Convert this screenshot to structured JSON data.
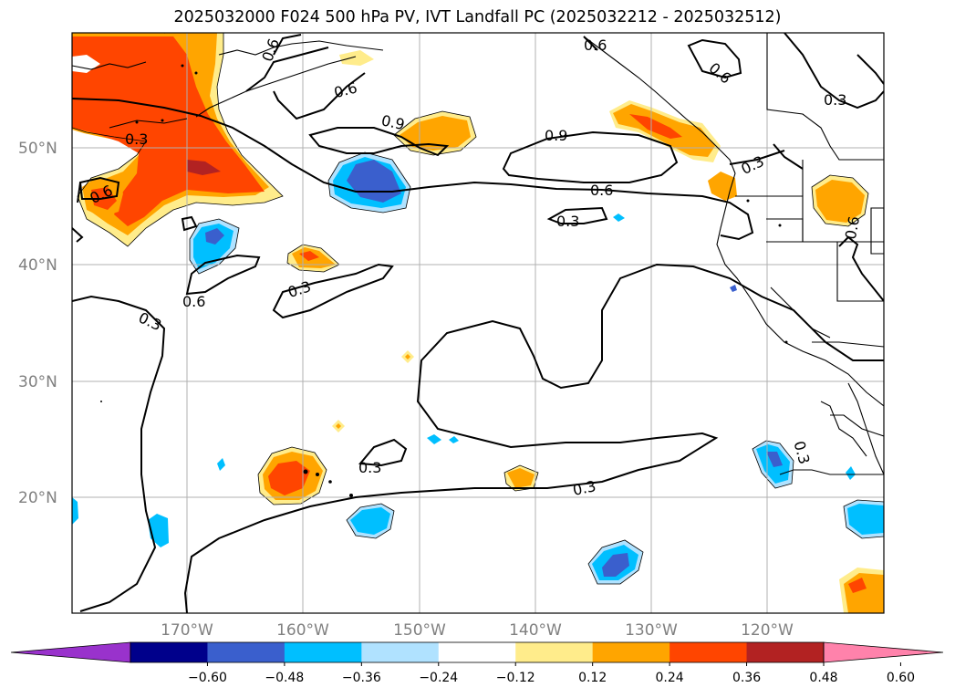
{
  "title": "2025032000 F024 500 hPa PV, IVT Landfall PC (2025032212 - 2025032512)",
  "lat_labels": [
    "50°N",
    "40°N",
    "30°N",
    "20°N"
  ],
  "lon_labels": [
    "170°W",
    "160°W",
    "150°W",
    "140°W",
    "130°W",
    "120°W"
  ],
  "contour_labels": [
    "0.3",
    "0.6",
    "0.9"
  ],
  "colorbar": {
    "ticks": [
      "−0.60",
      "−0.48",
      "−0.36",
      "−0.24",
      "−0.12",
      "0.12",
      "0.24",
      "0.36",
      "0.48",
      "0.60"
    ],
    "colors": [
      "#9932cc",
      "#00008b",
      "#3a5fcd",
      "#00bfff",
      "#b0e2ff",
      "#ffffff",
      "#ffec8b",
      "#ffa500",
      "#ff4500",
      "#b22222",
      "#ff82ab"
    ]
  }
}
